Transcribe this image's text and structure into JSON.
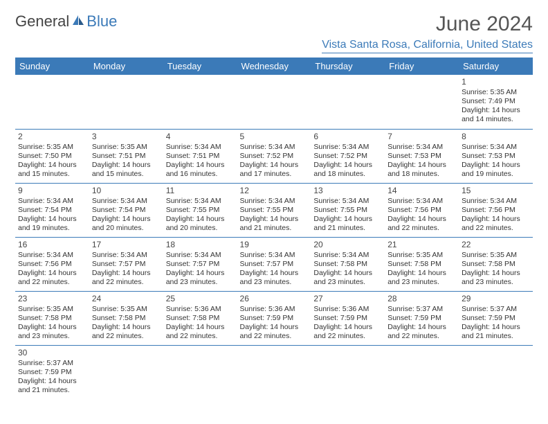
{
  "logo": {
    "part1": "General",
    "part2": "Blue"
  },
  "title": "June 2024",
  "location": "Vista Santa Rosa, California, United States",
  "colors": {
    "accent": "#3b7ab8",
    "text": "#333333",
    "bg": "#ffffff"
  },
  "weekdays": [
    "Sunday",
    "Monday",
    "Tuesday",
    "Wednesday",
    "Thursday",
    "Friday",
    "Saturday"
  ],
  "weeks": [
    [
      null,
      null,
      null,
      null,
      null,
      null,
      {
        "d": "1",
        "sr": "Sunrise: 5:35 AM",
        "ss": "Sunset: 7:49 PM",
        "dl1": "Daylight: 14 hours",
        "dl2": "and 14 minutes."
      }
    ],
    [
      {
        "d": "2",
        "sr": "Sunrise: 5:35 AM",
        "ss": "Sunset: 7:50 PM",
        "dl1": "Daylight: 14 hours",
        "dl2": "and 15 minutes."
      },
      {
        "d": "3",
        "sr": "Sunrise: 5:35 AM",
        "ss": "Sunset: 7:51 PM",
        "dl1": "Daylight: 14 hours",
        "dl2": "and 15 minutes."
      },
      {
        "d": "4",
        "sr": "Sunrise: 5:34 AM",
        "ss": "Sunset: 7:51 PM",
        "dl1": "Daylight: 14 hours",
        "dl2": "and 16 minutes."
      },
      {
        "d": "5",
        "sr": "Sunrise: 5:34 AM",
        "ss": "Sunset: 7:52 PM",
        "dl1": "Daylight: 14 hours",
        "dl2": "and 17 minutes."
      },
      {
        "d": "6",
        "sr": "Sunrise: 5:34 AM",
        "ss": "Sunset: 7:52 PM",
        "dl1": "Daylight: 14 hours",
        "dl2": "and 18 minutes."
      },
      {
        "d": "7",
        "sr": "Sunrise: 5:34 AM",
        "ss": "Sunset: 7:53 PM",
        "dl1": "Daylight: 14 hours",
        "dl2": "and 18 minutes."
      },
      {
        "d": "8",
        "sr": "Sunrise: 5:34 AM",
        "ss": "Sunset: 7:53 PM",
        "dl1": "Daylight: 14 hours",
        "dl2": "and 19 minutes."
      }
    ],
    [
      {
        "d": "9",
        "sr": "Sunrise: 5:34 AM",
        "ss": "Sunset: 7:54 PM",
        "dl1": "Daylight: 14 hours",
        "dl2": "and 19 minutes."
      },
      {
        "d": "10",
        "sr": "Sunrise: 5:34 AM",
        "ss": "Sunset: 7:54 PM",
        "dl1": "Daylight: 14 hours",
        "dl2": "and 20 minutes."
      },
      {
        "d": "11",
        "sr": "Sunrise: 5:34 AM",
        "ss": "Sunset: 7:55 PM",
        "dl1": "Daylight: 14 hours",
        "dl2": "and 20 minutes."
      },
      {
        "d": "12",
        "sr": "Sunrise: 5:34 AM",
        "ss": "Sunset: 7:55 PM",
        "dl1": "Daylight: 14 hours",
        "dl2": "and 21 minutes."
      },
      {
        "d": "13",
        "sr": "Sunrise: 5:34 AM",
        "ss": "Sunset: 7:55 PM",
        "dl1": "Daylight: 14 hours",
        "dl2": "and 21 minutes."
      },
      {
        "d": "14",
        "sr": "Sunrise: 5:34 AM",
        "ss": "Sunset: 7:56 PM",
        "dl1": "Daylight: 14 hours",
        "dl2": "and 22 minutes."
      },
      {
        "d": "15",
        "sr": "Sunrise: 5:34 AM",
        "ss": "Sunset: 7:56 PM",
        "dl1": "Daylight: 14 hours",
        "dl2": "and 22 minutes."
      }
    ],
    [
      {
        "d": "16",
        "sr": "Sunrise: 5:34 AM",
        "ss": "Sunset: 7:56 PM",
        "dl1": "Daylight: 14 hours",
        "dl2": "and 22 minutes."
      },
      {
        "d": "17",
        "sr": "Sunrise: 5:34 AM",
        "ss": "Sunset: 7:57 PM",
        "dl1": "Daylight: 14 hours",
        "dl2": "and 22 minutes."
      },
      {
        "d": "18",
        "sr": "Sunrise: 5:34 AM",
        "ss": "Sunset: 7:57 PM",
        "dl1": "Daylight: 14 hours",
        "dl2": "and 23 minutes."
      },
      {
        "d": "19",
        "sr": "Sunrise: 5:34 AM",
        "ss": "Sunset: 7:57 PM",
        "dl1": "Daylight: 14 hours",
        "dl2": "and 23 minutes."
      },
      {
        "d": "20",
        "sr": "Sunrise: 5:34 AM",
        "ss": "Sunset: 7:58 PM",
        "dl1": "Daylight: 14 hours",
        "dl2": "and 23 minutes."
      },
      {
        "d": "21",
        "sr": "Sunrise: 5:35 AM",
        "ss": "Sunset: 7:58 PM",
        "dl1": "Daylight: 14 hours",
        "dl2": "and 23 minutes."
      },
      {
        "d": "22",
        "sr": "Sunrise: 5:35 AM",
        "ss": "Sunset: 7:58 PM",
        "dl1": "Daylight: 14 hours",
        "dl2": "and 23 minutes."
      }
    ],
    [
      {
        "d": "23",
        "sr": "Sunrise: 5:35 AM",
        "ss": "Sunset: 7:58 PM",
        "dl1": "Daylight: 14 hours",
        "dl2": "and 23 minutes."
      },
      {
        "d": "24",
        "sr": "Sunrise: 5:35 AM",
        "ss": "Sunset: 7:58 PM",
        "dl1": "Daylight: 14 hours",
        "dl2": "and 22 minutes."
      },
      {
        "d": "25",
        "sr": "Sunrise: 5:36 AM",
        "ss": "Sunset: 7:58 PM",
        "dl1": "Daylight: 14 hours",
        "dl2": "and 22 minutes."
      },
      {
        "d": "26",
        "sr": "Sunrise: 5:36 AM",
        "ss": "Sunset: 7:59 PM",
        "dl1": "Daylight: 14 hours",
        "dl2": "and 22 minutes."
      },
      {
        "d": "27",
        "sr": "Sunrise: 5:36 AM",
        "ss": "Sunset: 7:59 PM",
        "dl1": "Daylight: 14 hours",
        "dl2": "and 22 minutes."
      },
      {
        "d": "28",
        "sr": "Sunrise: 5:37 AM",
        "ss": "Sunset: 7:59 PM",
        "dl1": "Daylight: 14 hours",
        "dl2": "and 22 minutes."
      },
      {
        "d": "29",
        "sr": "Sunrise: 5:37 AM",
        "ss": "Sunset: 7:59 PM",
        "dl1": "Daylight: 14 hours",
        "dl2": "and 21 minutes."
      }
    ],
    [
      {
        "d": "30",
        "sr": "Sunrise: 5:37 AM",
        "ss": "Sunset: 7:59 PM",
        "dl1": "Daylight: 14 hours",
        "dl2": "and 21 minutes."
      },
      null,
      null,
      null,
      null,
      null,
      null
    ]
  ]
}
